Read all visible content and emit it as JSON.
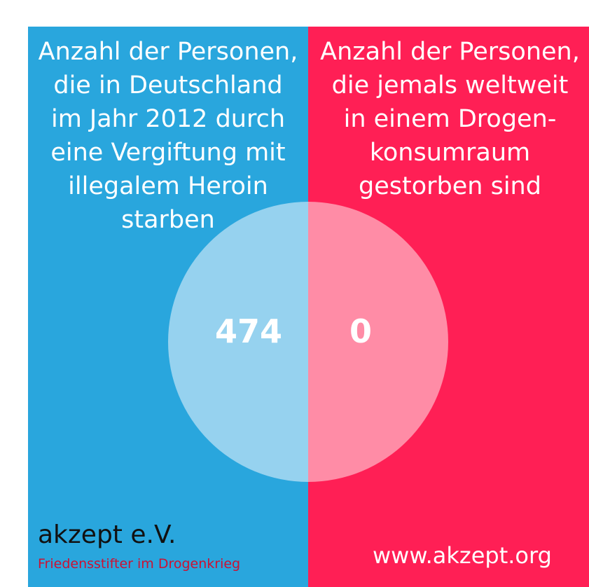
{
  "colors": {
    "left_panel": "#29a6dd",
    "right_panel": "#ff1f55",
    "left_circle": "#96d2ef",
    "right_circle": "#ff8ca6",
    "tagline": "#cc1133"
  },
  "left": {
    "heading": "Anzahl der Personen,\ndie in Deutschland\nim Jahr 2012 durch\neine Vergiftung mit\nillegalem Heroin\nstarben",
    "value": "474"
  },
  "right": {
    "heading": "Anzahl der Personen,\ndie jemals weltweit\nin einem Drogen-\nkonsumraum\ngestorben sind",
    "value": "0"
  },
  "footer": {
    "org_name": "akzept e.V.",
    "tagline": "Friedensstifter im Drogenkrieg",
    "url": "www.akzept.org"
  }
}
